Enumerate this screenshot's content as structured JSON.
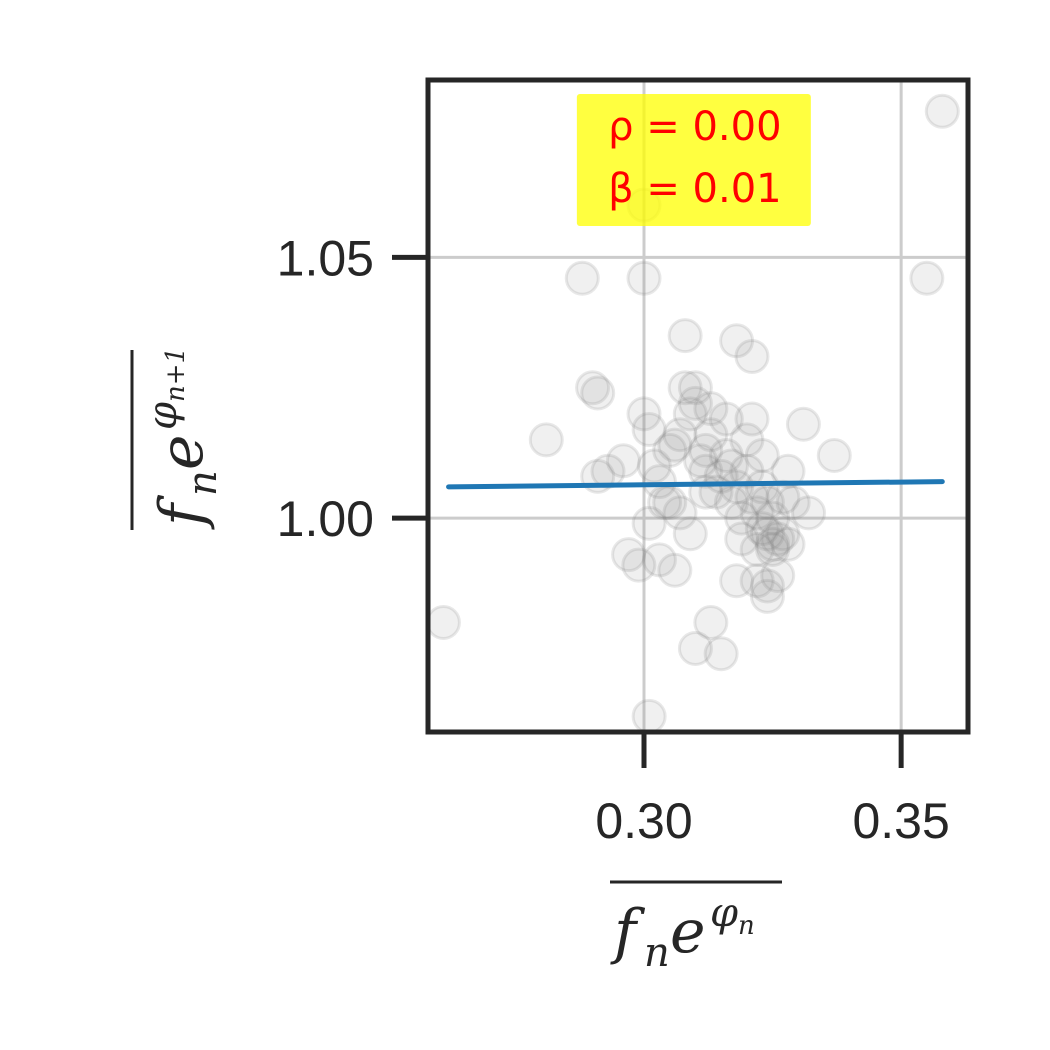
{
  "chart_data": {
    "type": "scatter",
    "title": "",
    "xlabel": {
      "base": "f",
      "sub": "n",
      "exp_base": "e",
      "exp": "φ",
      "exp_sub": "n",
      "overline": true
    },
    "ylabel": {
      "base": "f",
      "sub": "n",
      "exp_base": "e",
      "exp": "φ",
      "exp_sub": "n+1",
      "overline": true
    },
    "xlim": [
      0.258,
      0.363
    ],
    "ylim": [
      0.959,
      1.084
    ],
    "xticks": [
      0.3,
      0.35
    ],
    "xtick_labels": [
      "0.30",
      "0.35"
    ],
    "yticks": [
      1.0,
      1.05
    ],
    "ytick_labels": [
      "1.00",
      "1.05"
    ],
    "grid": true,
    "annotation": {
      "lines": [
        "ρ = 0.00",
        "β = 0.01"
      ],
      "background": "#ffff00",
      "color": "#ff0000",
      "placement": "top-center"
    },
    "fit_line": {
      "x": [
        0.262,
        0.358
      ],
      "y": [
        1.006,
        1.007
      ],
      "color": "#1f77b4"
    },
    "points_color": "#808080",
    "points": [
      [
        0.261,
        0.98
      ],
      [
        0.281,
        1.015
      ],
      [
        0.288,
        1.046
      ],
      [
        0.29,
        1.025
      ],
      [
        0.291,
        1.024
      ],
      [
        0.291,
        1.008
      ],
      [
        0.293,
        1.009
      ],
      [
        0.296,
        1.011
      ],
      [
        0.3,
        1.06
      ],
      [
        0.3,
        1.046
      ],
      [
        0.3,
        1.02
      ],
      [
        0.301,
        1.017
      ],
      [
        0.302,
        1.01
      ],
      [
        0.303,
        1.007
      ],
      [
        0.304,
        1.003
      ],
      [
        0.305,
        1.013
      ],
      [
        0.306,
        1.014
      ],
      [
        0.307,
        1.016
      ],
      [
        0.308,
        1.035
      ],
      [
        0.308,
        1.025
      ],
      [
        0.309,
        1.02
      ],
      [
        0.31,
        1.022
      ],
      [
        0.31,
        1.025
      ],
      [
        0.311,
        1.011
      ],
      [
        0.312,
        1.009
      ],
      [
        0.312,
        1.013
      ],
      [
        0.313,
        1.021
      ],
      [
        0.313,
        1.016
      ],
      [
        0.314,
        1.005
      ],
      [
        0.315,
        1.008
      ],
      [
        0.316,
        1.019
      ],
      [
        0.316,
        1.012
      ],
      [
        0.317,
        1.003
      ],
      [
        0.317,
        1.01
      ],
      [
        0.318,
        1.006
      ],
      [
        0.318,
        1.034
      ],
      [
        0.319,
        1.0
      ],
      [
        0.32,
        1.015
      ],
      [
        0.32,
        1.009
      ],
      [
        0.321,
        1.004
      ],
      [
        0.321,
        1.019
      ],
      [
        0.321,
        1.031
      ],
      [
        0.322,
        1.001
      ],
      [
        0.322,
        0.994
      ],
      [
        0.322,
        0.988
      ],
      [
        0.323,
        0.998
      ],
      [
        0.323,
        1.006
      ],
      [
        0.323,
        1.012
      ],
      [
        0.324,
        0.997
      ],
      [
        0.324,
        1.003
      ],
      [
        0.324,
        0.987
      ],
      [
        0.325,
        0.995
      ],
      [
        0.325,
        1.0
      ],
      [
        0.325,
        0.994
      ],
      [
        0.326,
        0.996
      ],
      [
        0.326,
        0.989
      ],
      [
        0.327,
        0.997
      ],
      [
        0.327,
        1.004
      ],
      [
        0.328,
        0.995
      ],
      [
        0.328,
        1.009
      ],
      [
        0.329,
        1.003
      ],
      [
        0.331,
        1.018
      ],
      [
        0.332,
        1.001
      ],
      [
        0.337,
        1.012
      ],
      [
        0.297,
        0.993
      ],
      [
        0.299,
        0.991
      ],
      [
        0.301,
        0.999
      ],
      [
        0.303,
        0.992
      ],
      [
        0.306,
        0.99
      ],
      [
        0.307,
        1.001
      ],
      [
        0.309,
        0.997
      ],
      [
        0.31,
        0.975
      ],
      [
        0.313,
        0.98
      ],
      [
        0.315,
        0.974
      ],
      [
        0.318,
        0.988
      ],
      [
        0.319,
        0.996
      ],
      [
        0.324,
        0.985
      ],
      [
        0.301,
        0.962
      ],
      [
        0.305,
        1.003
      ],
      [
        0.312,
        1.005
      ],
      [
        0.355,
        1.046
      ],
      [
        0.358,
        1.078
      ]
    ]
  }
}
